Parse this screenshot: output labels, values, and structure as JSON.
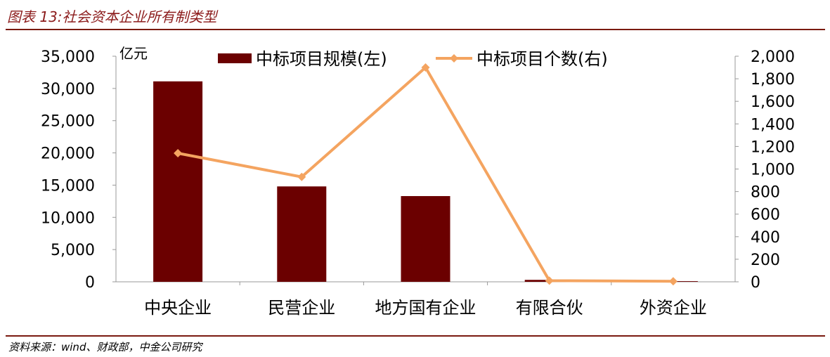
{
  "figure": {
    "title": "图表 13:社会资本企业所有制类型",
    "source": "资料来源：wind、财政部，中金公司研究"
  },
  "chart_data": {
    "type": "bar",
    "categories": [
      "中央企业",
      "民营企业",
      "地方国有企业",
      "有限合伙",
      "外资企业"
    ],
    "series": [
      {
        "name": "中标项目规模(左)",
        "type": "bar",
        "axis": "left",
        "color": "#6b0000",
        "values": [
          31100,
          14800,
          13300,
          300,
          100
        ]
      },
      {
        "name": "中标项目个数(右)",
        "type": "line",
        "axis": "right",
        "color": "#f4a460",
        "values": [
          1140,
          930,
          1900,
          10,
          5
        ]
      }
    ],
    "y_left": {
      "unit": "亿元",
      "ylim": [
        0,
        35000
      ],
      "ticks": [
        "35,000",
        "30,000",
        "25,000",
        "20,000",
        "15,000",
        "10,000",
        "5,000",
        "0"
      ],
      "tick_values": [
        35000,
        30000,
        25000,
        20000,
        15000,
        10000,
        5000,
        0
      ]
    },
    "y_right": {
      "ylim": [
        0,
        2000
      ],
      "ticks": [
        "2,000",
        "1,800",
        "1,600",
        "1,400",
        "1,200",
        "1,000",
        "800",
        "600",
        "400",
        "200",
        "0"
      ],
      "tick_values": [
        2000,
        1800,
        1600,
        1400,
        1200,
        1000,
        800,
        600,
        400,
        200,
        0
      ]
    },
    "legend_position": "top",
    "grid": false
  }
}
